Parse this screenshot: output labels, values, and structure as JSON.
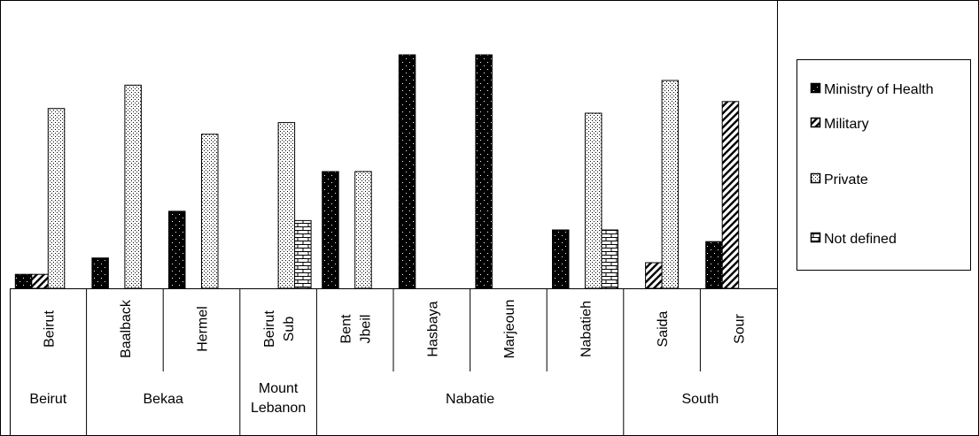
{
  "chart_data": {
    "type": "bar",
    "title": "",
    "xlabel": "",
    "ylabel": "",
    "ylim": [
      0,
      100
    ],
    "grid": false,
    "legend_position": "right",
    "groups": [
      {
        "name": "Beirut",
        "categories": [
          "Beirut"
        ]
      },
      {
        "name": "Bekaa",
        "categories": [
          "Baalback",
          "Hermel"
        ]
      },
      {
        "name": "Mount Lebanon",
        "categories": [
          "Beirut Sub"
        ]
      },
      {
        "name": "Nabatie",
        "categories": [
          "Bent Jbeil",
          "Hasbaya",
          "Marjeoun",
          "Nabatieh"
        ]
      },
      {
        "name": "South",
        "categories": [
          "Saida",
          "Sour"
        ]
      }
    ],
    "categories": [
      "Beirut",
      "Baalback",
      "Hermel",
      "Beirut Sub",
      "Bent Jbeil",
      "Hasbaya",
      "Marjeoun",
      "Nabatieh",
      "Saida",
      "Sour"
    ],
    "series": [
      {
        "name": "Ministry of Health",
        "pattern": "dots",
        "values": [
          6,
          13,
          33,
          0,
          50,
          100,
          100,
          25,
          0,
          20
        ]
      },
      {
        "name": "Military",
        "pattern": "diagonal",
        "values": [
          6,
          0,
          0,
          0,
          0,
          0,
          0,
          0,
          11,
          80
        ]
      },
      {
        "name": "Private",
        "pattern": "checker",
        "values": [
          77,
          87,
          66,
          71,
          50,
          0,
          0,
          75,
          89,
          0
        ]
      },
      {
        "name": "Not defined",
        "pattern": "brick",
        "values": [
          0,
          0,
          0,
          29,
          0,
          0,
          0,
          25,
          0,
          0
        ]
      }
    ]
  }
}
